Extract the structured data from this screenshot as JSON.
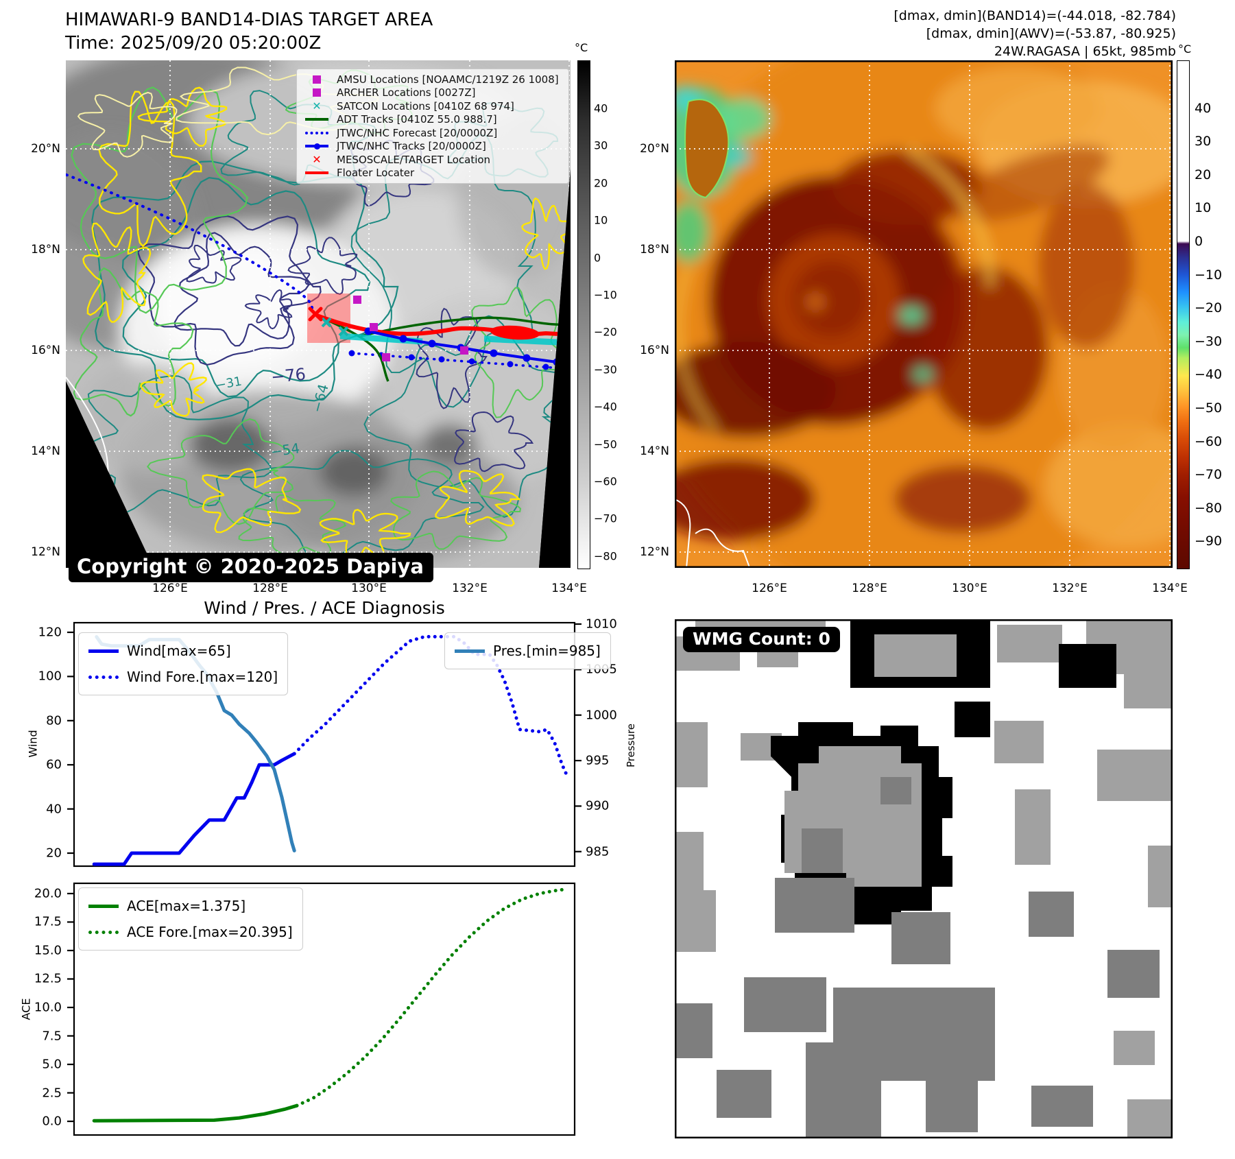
{
  "band14": {
    "title": "HIMAWARI-9 BAND14-DIAS TARGET AREA",
    "time": "Time: 2025/09/20 05:20:00Z",
    "copyright": "Copyright © 2020-2025 Dapiya",
    "legend": [
      {
        "marker": "square-magenta",
        "label": "AMSU Locations [NOAAMC/1219Z 26 1008]"
      },
      {
        "marker": "square-magenta",
        "label": "ARCHER Locations [0027Z]"
      },
      {
        "marker": "x-cyan",
        "label": "SATCON Locations [0410Z 68 974]"
      },
      {
        "marker": "line-green",
        "label": "ADT Tracks [0410Z 55.0 988.7]"
      },
      {
        "marker": "dotted-blue",
        "label": "JTWC/NHC Forecast [20/0000Z]"
      },
      {
        "marker": "line-dot-blue",
        "label": "JTWC/NHC Tracks [20/0000Z]"
      },
      {
        "marker": "x-red",
        "label": "MESOSCALE/TARGET Location"
      },
      {
        "marker": "line-red",
        "label": "Floater Locater"
      }
    ],
    "lat_ticks": [
      "20°N",
      "18°N",
      "16°N",
      "14°N",
      "12°N"
    ],
    "lon_ticks": [
      "126°E",
      "128°E",
      "130°E",
      "132°E",
      "134°E"
    ],
    "colorbar": {
      "unit": "°C",
      "ticks": [
        "40",
        "30",
        "20",
        "10",
        "0",
        "−10",
        "−20",
        "−30",
        "−40",
        "−50",
        "−60",
        "−70",
        "−80"
      ]
    },
    "contour_labels": [
      "−76",
      "−64",
      "−54",
      "−31"
    ]
  },
  "awv": {
    "header": [
      "[dmax, dmin](BAND14)=(-44.018, -82.784)",
      "[dmax, dmin](AWV)=(-53.87, -80.925)",
      "24W.RAGASA | 65kt, 985mb"
    ],
    "lat_ticks": [
      "20°N",
      "18°N",
      "16°N",
      "14°N",
      "12°N"
    ],
    "lon_ticks": [
      "126°E",
      "128°E",
      "130°E",
      "132°E",
      "134°E"
    ],
    "colorbar": {
      "unit": "°C",
      "ticks": [
        "40",
        "30",
        "20",
        "10",
        "0",
        "−10",
        "−20",
        "−30",
        "−40",
        "−50",
        "−60",
        "−70",
        "−80",
        "−90"
      ]
    }
  },
  "wmg": {
    "label": "WMG Count: 0"
  },
  "chart_data": [
    {
      "type": "line",
      "title": "Wind / Pres. / ACE Diagnosis",
      "ylabel_left": "Wind",
      "ylabel_right": "Pressure",
      "ylim_left": [
        14.1,
        124.35
      ],
      "ylim_right": [
        983.4,
        1010.15
      ],
      "yticks_left": [
        20,
        40,
        60,
        80,
        100,
        120
      ],
      "yticks_right": [
        985,
        990,
        995,
        1000,
        1005,
        1010
      ],
      "xlim": [
        0,
        1
      ],
      "grid": false,
      "series": [
        {
          "name": "Wind[max=65]",
          "axis": "left",
          "style": "solid",
          "color": "#0000ee",
          "width": 5,
          "x": [
            0.04,
            0.1,
            0.115,
            0.21,
            0.24,
            0.27,
            0.3,
            0.325,
            0.34,
            0.355,
            0.37,
            0.4,
            0.415,
            0.44
          ],
          "y": [
            15,
            15,
            20,
            20,
            28,
            35,
            35,
            45,
            45,
            52,
            60,
            60,
            62,
            65
          ]
        },
        {
          "name": "Wind Fore.[max=120]",
          "axis": "left",
          "style": "dotted",
          "color": "#0000ee",
          "width": 5,
          "x": [
            0.44,
            0.47,
            0.5,
            0.53,
            0.56,
            0.59,
            0.62,
            0.65,
            0.67,
            0.7,
            0.76,
            0.78,
            0.8,
            0.83,
            0.845,
            0.86,
            0.875,
            0.89,
            0.93,
            0.945,
            0.96,
            0.975,
            0.985
          ],
          "y": [
            65,
            72,
            78,
            85,
            92,
            99,
            106,
            112,
            116,
            118,
            118,
            115,
            110,
            110,
            105,
            98,
            88,
            76,
            75,
            76,
            70,
            60,
            55
          ]
        },
        {
          "name": "Pres.[min=985]",
          "axis": "right",
          "style": "solid",
          "color": "#3180b8",
          "width": 5,
          "x": [
            0.045,
            0.055,
            0.075,
            0.13,
            0.15,
            0.21,
            0.23,
            0.25,
            0.265,
            0.285,
            0.3,
            0.315,
            0.33,
            0.35,
            0.365,
            0.385,
            0.4,
            0.415,
            0.425,
            0.435,
            0.44
          ],
          "y": [
            1008.6,
            1007.8,
            1007.6,
            1007.6,
            1008.3,
            1008.3,
            1007,
            1005.5,
            1004.5,
            1002.5,
            1000.5,
            1000,
            999,
            998,
            997,
            995.5,
            994,
            991,
            988.5,
            986,
            985.1
          ]
        }
      ]
    },
    {
      "type": "line",
      "ylabel_left": "ACE",
      "ylim_left": [
        -1.2,
        20.9
      ],
      "yticks_left": [
        0,
        2.5,
        5,
        7.5,
        10,
        12.5,
        15,
        17.5,
        20
      ],
      "ydec": 1,
      "xlim": [
        0,
        1
      ],
      "grid": false,
      "series": [
        {
          "name": "ACE[max=1.375]",
          "axis": "left",
          "style": "solid",
          "color": "#008000",
          "width": 5,
          "x": [
            0.04,
            0.28,
            0.33,
            0.38,
            0.42,
            0.445
          ],
          "y": [
            0.05,
            0.1,
            0.3,
            0.65,
            1.05,
            1.375
          ]
        },
        {
          "name": "ACE Fore.[max=20.395]",
          "axis": "left",
          "style": "dotted",
          "color": "#008000",
          "width": 5,
          "x": [
            0.445,
            0.48,
            0.51,
            0.545,
            0.58,
            0.615,
            0.65,
            0.685,
            0.72,
            0.755,
            0.79,
            0.825,
            0.86,
            0.895,
            0.93,
            0.96,
            0.985
          ],
          "y": [
            1.375,
            2.1,
            3.0,
            4.2,
            5.6,
            7.2,
            9.0,
            10.9,
            12.8,
            14.6,
            16.2,
            17.6,
            18.7,
            19.5,
            20.0,
            20.25,
            20.395
          ]
        }
      ]
    }
  ]
}
